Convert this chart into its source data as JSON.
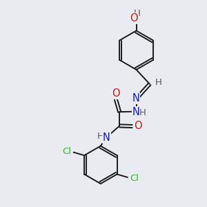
{
  "bg_color": "#e8ecf0",
  "bond_color": "#1a1a1a",
  "bond_width": 1.4,
  "dbl_sep": 0.07,
  "colors": {
    "N": "#1414cc",
    "O": "#cc1414",
    "Cl": "#2db82d",
    "H": "#555555",
    "bond": "#1a1a1a"
  },
  "font_size": 9.5
}
